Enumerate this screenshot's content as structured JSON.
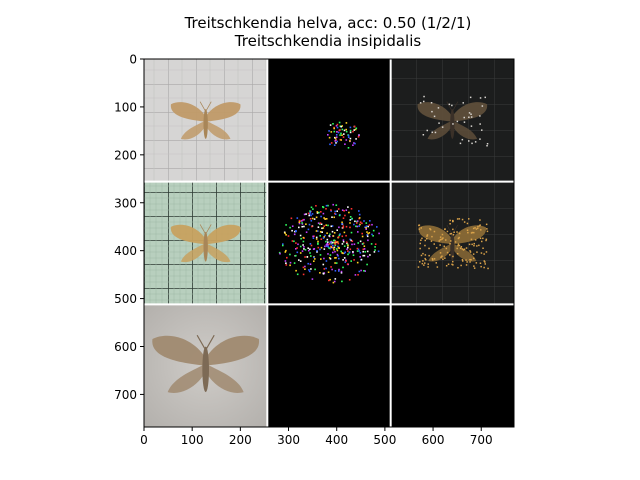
{
  "figure": {
    "title_line1": "Treitschkendia helva, acc: 0.50 (1/2/1)",
    "title_line2": "Treitschkendia insipidalis"
  },
  "chart_data": {
    "type": "image-grid",
    "title": "Treitschkendia helva, acc: 0.50 (1/2/1)",
    "subtitle": "Treitschkendia insipidalis",
    "xlim": [
      0,
      768
    ],
    "ylim": [
      768,
      0
    ],
    "xticks": [
      0,
      100,
      200,
      300,
      400,
      500,
      600,
      700
    ],
    "yticks": [
      0,
      100,
      200,
      300,
      400,
      500,
      600,
      700
    ],
    "grid": false,
    "rows": [
      [
        {
          "content": "moth photo on grid paper",
          "background": "#d4d3d2",
          "tone": "#c09a68"
        },
        {
          "content": "saliency map (sparse)",
          "background": "#000000",
          "tone": "#ffffff"
        },
        {
          "content": "masked photo (dark)",
          "background": "#1c1c1c",
          "tone": "#5e4e3a"
        }
      ],
      [
        {
          "content": "moth photo on green grid paper",
          "background": "#bcd0c0",
          "tone": "#c7a15f"
        },
        {
          "content": "saliency map (dense)",
          "background": "#000000",
          "tone": "#ffffff"
        },
        {
          "content": "masked photo (dark)",
          "background": "#1b1d1c",
          "tone": "#8a6a36"
        }
      ],
      [
        {
          "content": "moth photo on grey background",
          "background": "#bfbcb8",
          "tone": "#a08a70"
        },
        {
          "content": "empty",
          "background": "#000000",
          "tone": "#000000"
        },
        {
          "content": "empty",
          "background": "#000000",
          "tone": "#000000"
        }
      ]
    ]
  }
}
